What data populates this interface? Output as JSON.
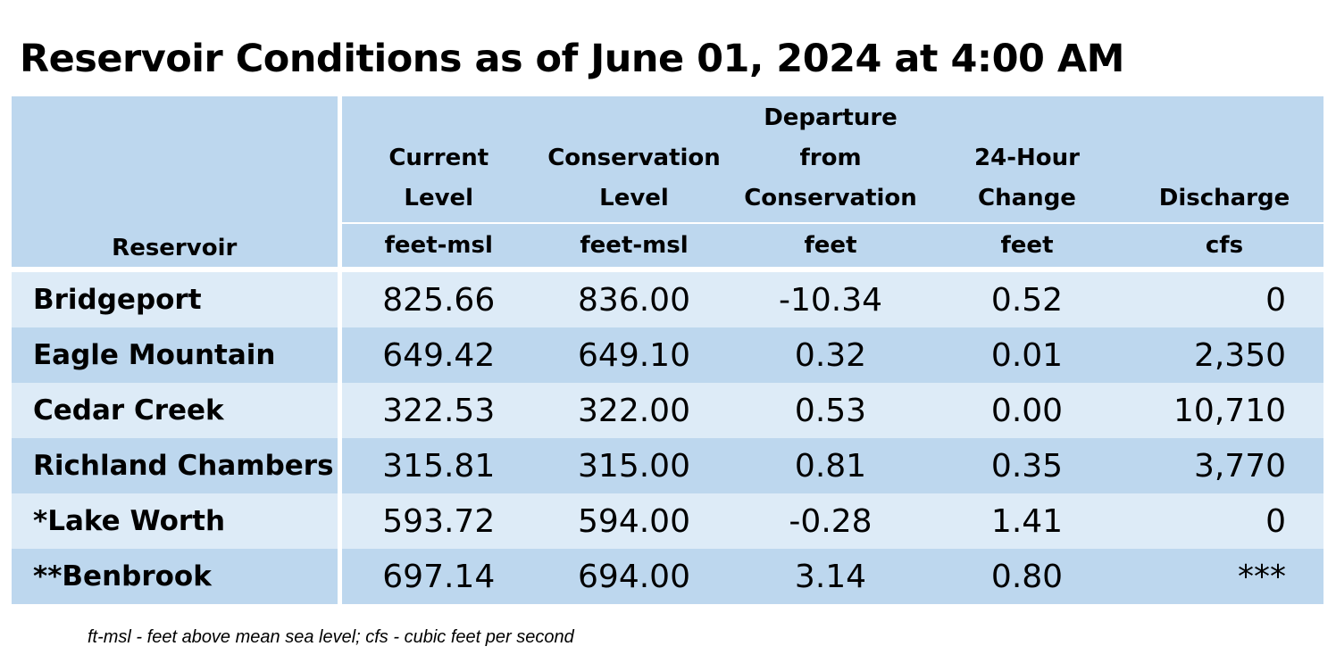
{
  "title": "Reservoir Conditions as of June 01, 2024 at 4:00 AM",
  "table": {
    "header": {
      "reservoir": "Reservoir",
      "current_level": [
        "Current",
        "Level"
      ],
      "conservation_level": [
        "Conservation",
        "Level"
      ],
      "departure": [
        "Departure",
        "from",
        "Conservation"
      ],
      "change_24h": [
        "24-Hour",
        "Change"
      ],
      "discharge": "Discharge"
    },
    "units": [
      "feet-msl",
      "feet-msl",
      "feet",
      "feet",
      "cfs"
    ],
    "rows": [
      {
        "name": "Bridgeport",
        "current": "825.66",
        "conservation": "836.00",
        "departure": "-10.34",
        "change": "0.52",
        "discharge": "0"
      },
      {
        "name": "Eagle Mountain",
        "current": "649.42",
        "conservation": "649.10",
        "departure": "0.32",
        "change": "0.01",
        "discharge": "2,350"
      },
      {
        "name": "Cedar Creek",
        "current": "322.53",
        "conservation": "322.00",
        "departure": "0.53",
        "change": "0.00",
        "discharge": "10,710"
      },
      {
        "name": "Richland Chambers",
        "current": "315.81",
        "conservation": "315.00",
        "departure": "0.81",
        "change": "0.35",
        "discharge": "3,770"
      },
      {
        "name": "*Lake Worth",
        "current": "593.72",
        "conservation": "594.00",
        "departure": "-0.28",
        "change": "1.41",
        "discharge": "0"
      },
      {
        "name": "**Benbrook",
        "current": "697.14",
        "conservation": "694.00",
        "departure": "3.14",
        "change": "0.80",
        "discharge": "***"
      }
    ]
  },
  "footnote": "ft-msl - feet above mean sea level; cfs - cubic feet per second",
  "colors": {
    "header_bg": "#bdd7ee",
    "row_light": "#ddebf7",
    "row_dark": "#bdd7ee"
  }
}
